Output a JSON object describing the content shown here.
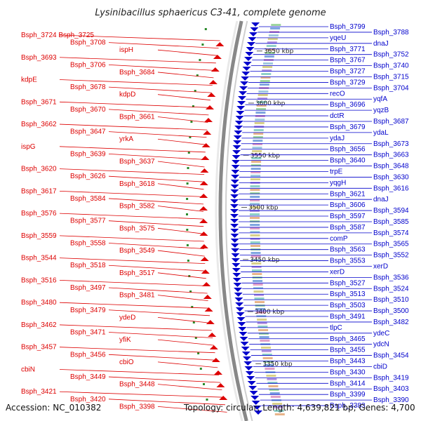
{
  "title": "Lysinibacillus sphaericus C3-41, complete genome",
  "footer": {
    "accession": "Accession: NC_010382",
    "summary": "Topology: circular; Length: 4,639,821 bp; Genes: 4,700"
  },
  "colors": {
    "minus_strand": "#dd0000",
    "plus_strand": "#0000cc",
    "backbone": "#888888"
  },
  "ticks": [
    {
      "label": "3650 kbp",
      "pos_bp": 3650000
    },
    {
      "label": "3600 kbp",
      "pos_bp": 3600000
    },
    {
      "label": "3550 kbp",
      "pos_bp": 3550000
    },
    {
      "label": "3500 kbp",
      "pos_bp": 3500000
    },
    {
      "label": "3450 kbp",
      "pos_bp": 3450000
    },
    {
      "label": "3400 kbp",
      "pos_bp": 3400000
    },
    {
      "label": "3350 kbp",
      "pos_bp": 3350000
    }
  ],
  "left_labels": [
    "Bsph_3724 Bsph_3725",
    "Bsph_3708",
    "ispH",
    "Bsph_3693",
    "Bsph_3706",
    "Bsph_3684",
    "kdpE",
    "Bsph_3678",
    "kdpD",
    "Bsph_3671",
    "Bsph_3670",
    "Bsph_3661",
    "Bsph_3662",
    "Bsph_3647",
    "yrkA",
    "ispG",
    "Bsph_3639",
    "Bsph_3637",
    "Bsph_3620",
    "Bsph_3626",
    "Bsph_3618",
    "Bsph_3617",
    "Bsph_3584",
    "Bsph_3582",
    "Bsph_3576",
    "Bsph_3577",
    "Bsph_3575",
    "Bsph_3559",
    "Bsph_3558",
    "Bsph_3549",
    "Bsph_3544",
    "Bsph_3518",
    "Bsph_3517",
    "Bsph_3516",
    "Bsph_3497",
    "Bsph_3481",
    "Bsph_3480",
    "Bsph_3479",
    "ydeD",
    "Bsph_3462",
    "Bsph_3471",
    "yfiK",
    "Bsph_3457",
    "Bsph_3456",
    "cbiO",
    "cbiN",
    "Bsph_3449",
    "Bsph_3448",
    "Bsph_3421",
    "Bsph_3420",
    "Bsph_3398"
  ],
  "right_labels": [
    "Bsph_3799",
    "Bsph_3788",
    "yqeU",
    "dnaJ",
    "Bsph_3771",
    "Bsph_3752",
    "Bsph_3767",
    "Bsph_3740",
    "Bsph_3727",
    "Bsph_3715",
    "Bsph_3729",
    "Bsph_3704",
    "recO",
    "yqfA",
    "Bsph_3696",
    "yqzB",
    "dctR",
    "Bsph_3687",
    "Bsph_3679",
    "ydaL",
    "ydaJ",
    "Bsph_3673",
    "Bsph_3656",
    "Bsph_3663",
    "Bsph_3640",
    "Bsph_3648",
    "trpE",
    "Bsph_3630",
    "yqgH",
    "Bsph_3616",
    "Bsph_3621",
    "dnaJ",
    "Bsph_3606",
    "Bsph_3594",
    "Bsph_3597",
    "Bsph_3585",
    "Bsph_3587",
    "Bsph_3574",
    "comP",
    "Bsph_3565",
    "Bsph_3563",
    "Bsph_3552",
    "Bsph_3553",
    "xerD",
    "xerD",
    "Bsph_3536",
    "Bsph_3527",
    "Bsph_3524",
    "Bsph_3513",
    "Bsph_3510",
    "Bsph_3503",
    "Bsph_3500",
    "Bsph_3491",
    "Bsph_3482",
    "tlpC",
    "ydeC",
    "Bsph_3465",
    "ydcN",
    "Bsph_3455",
    "Bsph_3454",
    "Bsph_3443",
    "cbiD",
    "Bsph_3430",
    "Bsph_3419",
    "Bsph_3414",
    "Bsph_3403",
    "Bsph_3399",
    "Bsph_3390",
    "Bsph_3383"
  ]
}
